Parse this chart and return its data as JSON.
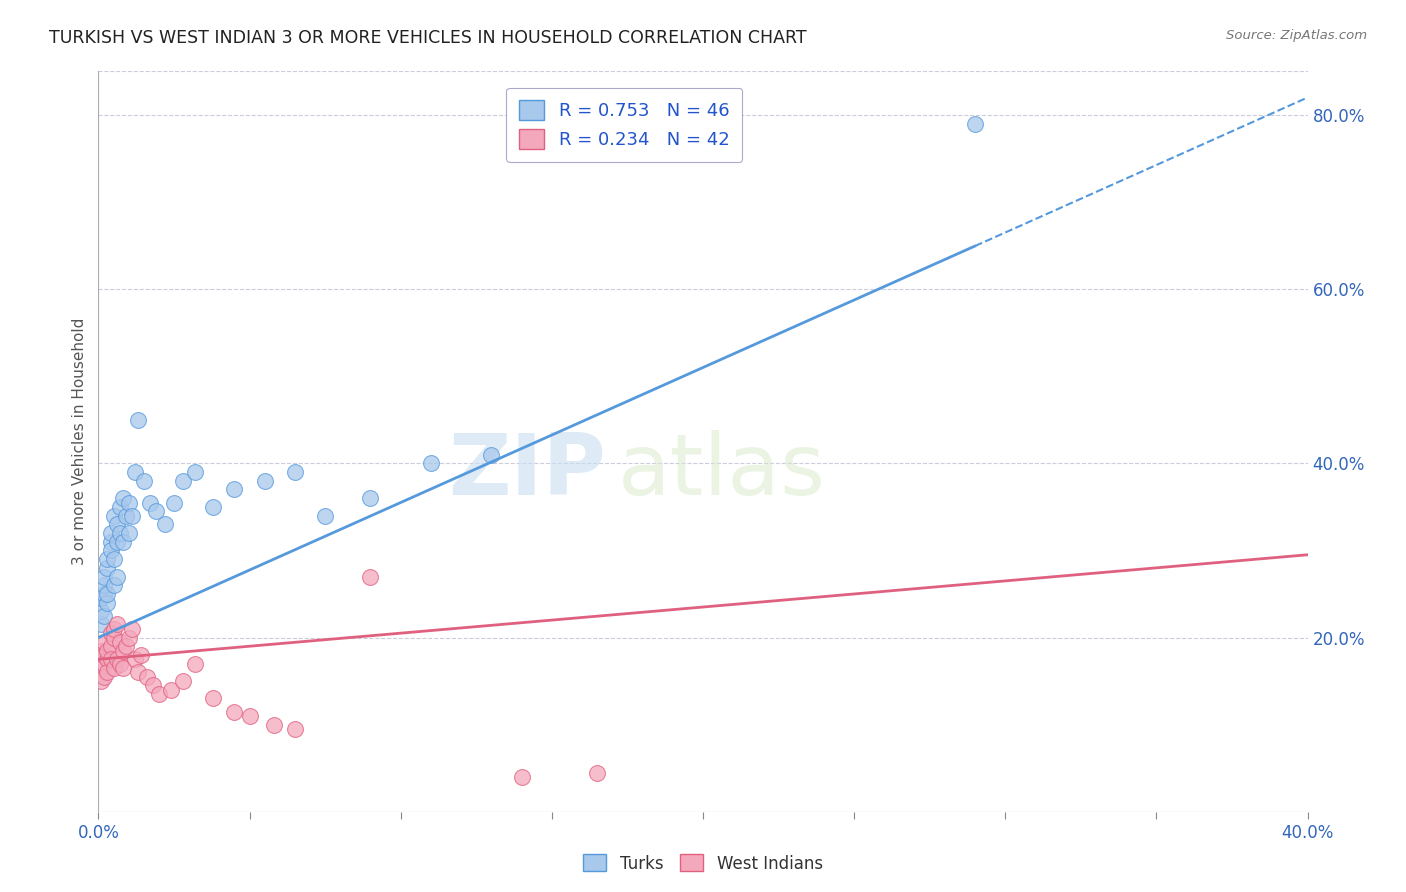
{
  "title": "TURKISH VS WEST INDIAN 3 OR MORE VEHICLES IN HOUSEHOLD CORRELATION CHART",
  "source": "Source: ZipAtlas.com",
  "ylabel": "3 or more Vehicles in Household",
  "xlim": [
    0.0,
    0.4
  ],
  "ylim": [
    0.0,
    0.85
  ],
  "yticks_right": [
    0.2,
    0.4,
    0.6,
    0.8
  ],
  "turks_color": "#A8C8EC",
  "west_indians_color": "#F4A8BC",
  "trendline_turks_color": "#5599DD",
  "trendline_west_indians_color": "#E06080",
  "legend_label_turks": "R = 0.753   N = 46",
  "legend_label_wi": "R = 0.234   N = 42",
  "watermark_zip": "ZIP",
  "watermark_atlas": "atlas",
  "turks_trendline": [
    0.0,
    0.2,
    0.4,
    0.82
  ],
  "wi_trendline": [
    0.0,
    0.175,
    0.4,
    0.295
  ],
  "turks_x": [
    0.001,
    0.001,
    0.001,
    0.002,
    0.002,
    0.002,
    0.002,
    0.003,
    0.003,
    0.003,
    0.003,
    0.004,
    0.004,
    0.004,
    0.005,
    0.005,
    0.005,
    0.006,
    0.006,
    0.006,
    0.007,
    0.007,
    0.008,
    0.008,
    0.009,
    0.01,
    0.01,
    0.011,
    0.012,
    0.013,
    0.015,
    0.017,
    0.019,
    0.022,
    0.025,
    0.028,
    0.032,
    0.038,
    0.045,
    0.055,
    0.065,
    0.075,
    0.09,
    0.11,
    0.13,
    0.29
  ],
  "turks_y": [
    0.215,
    0.23,
    0.245,
    0.25,
    0.26,
    0.225,
    0.27,
    0.24,
    0.28,
    0.25,
    0.29,
    0.31,
    0.3,
    0.32,
    0.34,
    0.29,
    0.26,
    0.33,
    0.31,
    0.27,
    0.35,
    0.32,
    0.36,
    0.31,
    0.34,
    0.355,
    0.32,
    0.34,
    0.39,
    0.45,
    0.38,
    0.355,
    0.345,
    0.33,
    0.355,
    0.38,
    0.39,
    0.35,
    0.37,
    0.38,
    0.39,
    0.34,
    0.36,
    0.4,
    0.41,
    0.79
  ],
  "wi_x": [
    0.001,
    0.001,
    0.001,
    0.002,
    0.002,
    0.002,
    0.002,
    0.003,
    0.003,
    0.003,
    0.004,
    0.004,
    0.004,
    0.005,
    0.005,
    0.005,
    0.006,
    0.006,
    0.007,
    0.007,
    0.008,
    0.008,
    0.009,
    0.01,
    0.011,
    0.012,
    0.013,
    0.014,
    0.016,
    0.018,
    0.02,
    0.024,
    0.028,
    0.032,
    0.038,
    0.045,
    0.05,
    0.058,
    0.065,
    0.09,
    0.14,
    0.165
  ],
  "wi_y": [
    0.185,
    0.165,
    0.15,
    0.17,
    0.18,
    0.155,
    0.195,
    0.175,
    0.16,
    0.185,
    0.19,
    0.205,
    0.175,
    0.2,
    0.165,
    0.21,
    0.215,
    0.175,
    0.195,
    0.17,
    0.185,
    0.165,
    0.19,
    0.2,
    0.21,
    0.175,
    0.16,
    0.18,
    0.155,
    0.145,
    0.135,
    0.14,
    0.15,
    0.17,
    0.13,
    0.115,
    0.11,
    0.1,
    0.095,
    0.27,
    0.04,
    0.045
  ]
}
